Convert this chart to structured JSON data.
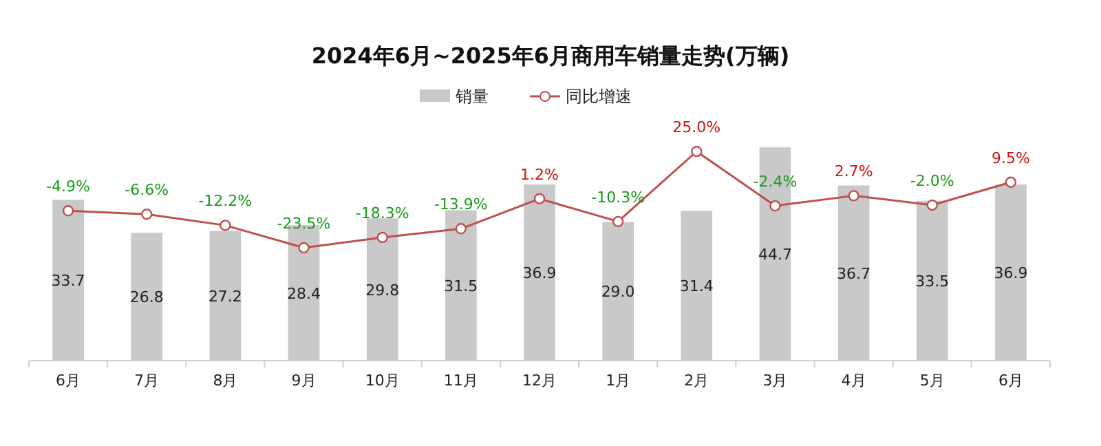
{
  "chart_data": {
    "type": "bar",
    "title": "2024年6月~2025年6月商用车销量走势(万辆)",
    "categories": [
      "6月",
      "7月",
      "8月",
      "9月",
      "10月",
      "11月",
      "12月",
      "1月",
      "2月",
      "3月",
      "4月",
      "5月",
      "6月"
    ],
    "series": [
      {
        "name": "销量",
        "color": "#c9c9c9",
        "values": [
          33.7,
          26.8,
          27.2,
          28.4,
          29.8,
          31.5,
          36.9,
          29.0,
          31.4,
          44.7,
          36.7,
          33.5,
          36.9
        ],
        "value_labels": [
          "33.7",
          "26.8",
          "27.2",
          "28.4",
          "29.8",
          "31.5",
          "36.9",
          "29.0",
          "31.4",
          "44.7",
          "36.7",
          "33.5",
          "36.9"
        ]
      },
      {
        "name": "同比增速",
        "type": "line",
        "axis": "y2",
        "color": "#c0504d",
        "marker": "circle",
        "values": [
          -4.9,
          -6.6,
          -12.2,
          -23.5,
          -18.3,
          -13.9,
          1.2,
          -10.3,
          25.0,
          -2.4,
          2.7,
          -2.0,
          9.5
        ],
        "value_labels": [
          "-4.9%",
          "-6.6%",
          "-12.2%",
          "-23.5%",
          "-18.3%",
          "-13.9%",
          "1.2%",
          "-10.3%",
          "25.0%",
          "-2.4%",
          "2.7%",
          "-2.0%",
          "9.5%"
        ]
      }
    ],
    "legend": "top",
    "grid": false
  }
}
